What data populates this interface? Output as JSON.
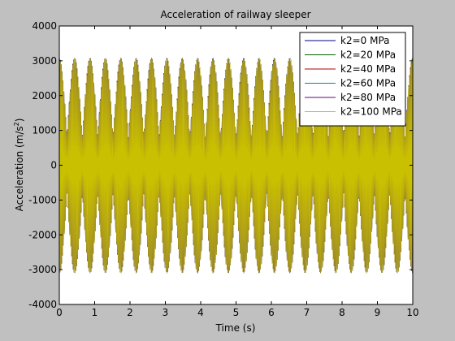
{
  "chart_data": {
    "type": "line",
    "title": "Acceleration of railway sleeper",
    "xlabel": "Time (s)",
    "ylabel_main": "Acceleration (m/s",
    "ylabel_sup": "2",
    "ylabel_end": ")",
    "xlim": [
      0,
      10
    ],
    "ylim": [
      -4000,
      4000
    ],
    "xticks": [
      0,
      1,
      2,
      3,
      4,
      5,
      6,
      7,
      8,
      9,
      10
    ],
    "xtick_labels": [
      "0",
      "1",
      "2",
      "3",
      "4",
      "5",
      "6",
      "7",
      "8",
      "9",
      "10"
    ],
    "yticks": [
      -4000,
      -3000,
      -2000,
      -1000,
      0,
      1000,
      2000,
      3000,
      4000
    ],
    "ytick_labels": [
      "-4000",
      "-3000",
      "-2000",
      "-1000",
      "0",
      "1000",
      "2000",
      "3000",
      "4000"
    ],
    "grid": false,
    "legend_position": "top-right",
    "signal": {
      "peak_amplitude": 3100,
      "beat_amplitude_min": 800,
      "carrier_frequency_hz": 40,
      "envelope_peaks_per_second": 2.3
    },
    "series": [
      {
        "name": "k2=0 MPa",
        "color": "#000080"
      },
      {
        "name": "k2=20 MPa",
        "color": "#006400"
      },
      {
        "name": "k2=40 MPa",
        "color": "#b00000"
      },
      {
        "name": "k2=60 MPa",
        "color": "#008b8b"
      },
      {
        "name": "k2=80 MPa",
        "color": "#6a0080"
      },
      {
        "name": "k2=100 MPa",
        "color": "#c8c000"
      }
    ]
  }
}
